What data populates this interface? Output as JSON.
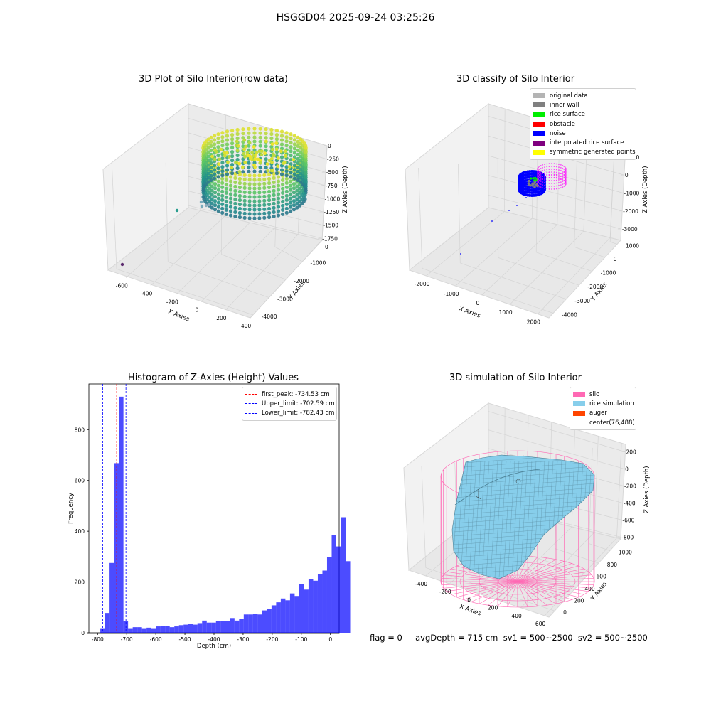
{
  "suptitle": "HSGGD04 2025-09-24 03:25:26",
  "panels": {
    "raw": {
      "title": "3D Plot of Silo Interior(row data)",
      "xlabel": "X Axies",
      "ylabel": "Y Axies",
      "zlabel": "Z Axies (Depth)",
      "xticks": [
        "-600",
        "-400",
        "-200",
        "0",
        "200",
        "400"
      ],
      "yticks": [
        "0",
        "-1000",
        "-2000",
        "-3000",
        "-4000"
      ],
      "zticks": [
        "0",
        "-250",
        "-500",
        "-750",
        "-1000",
        "-1250",
        "-1500",
        "-1750"
      ]
    },
    "classify": {
      "title": "3D classify of Silo Interior",
      "xlabel": "X Axies",
      "ylabel": "Y Axies",
      "zlabel": "Z Axies (Depth)",
      "xticks": [
        "-2000",
        "-1000",
        "0",
        "1000",
        "2000"
      ],
      "yticks": [
        "1000",
        "0",
        "-1000",
        "-2000",
        "-3000",
        "-4000"
      ],
      "zticks": [
        "1000",
        "0",
        "-1000",
        "-2000",
        "-3000"
      ],
      "legend": [
        {
          "label": "original data",
          "color": "#b4b4b4"
        },
        {
          "label": "inner wall",
          "color": "#808080"
        },
        {
          "label": "rice surface",
          "color": "#00ee00"
        },
        {
          "label": "obstacle",
          "color": "#ff0000"
        },
        {
          "label": "noise",
          "color": "#0000ff"
        },
        {
          "label": "interpolated rice surface",
          "color": "#800080"
        },
        {
          "label": "symmetric generated points",
          "color": "#ffff00"
        }
      ]
    },
    "histogram": {
      "title": "Histogram of Z-Axies (Height) Values",
      "legend": [
        {
          "label": "first_peak: -734.53 cm",
          "color": "#ff0000"
        },
        {
          "label": "Upper_limit: -702.59 cm",
          "color": "#0000ff"
        },
        {
          "label": "Lower_limit: -782.43 cm",
          "color": "#0000ff"
        }
      ]
    },
    "simulation": {
      "title": "3D simulation of Silo Interior",
      "xlabel": "X Axies",
      "ylabel": "Y Axies",
      "zlabel": "Z Axies (Depth)",
      "xticks": [
        "-400",
        "-200",
        "0",
        "200",
        "400",
        "600"
      ],
      "yticks": [
        "0",
        "200",
        "400",
        "600",
        "800",
        "1000"
      ],
      "zticks": [
        "200",
        "0",
        "-200",
        "-400",
        "-600",
        "-800"
      ],
      "legend": [
        {
          "label": "silo",
          "color": "#ff69b4"
        },
        {
          "label": "rice simulation",
          "color": "#87ceeb"
        },
        {
          "label": "auger",
          "color": "#ff4500"
        },
        {
          "label": "center(76,488)",
          "color": ""
        }
      ]
    }
  },
  "footer": "flag = 0     avgDepth = 715 cm  sv1 = 500~2500  sv2 = 500~2500",
  "chart_data": {
    "type": "bar",
    "title": "Histogram of Z-Axies (Height) Values",
    "xlabel": "Depth (cm)",
    "ylabel": "Frequency",
    "xlim": [
      -830,
      30
    ],
    "ylim": [
      0,
      980
    ],
    "xticks": [
      -800,
      -700,
      -600,
      -500,
      -400,
      -300,
      -200,
      -100,
      0
    ],
    "yticks": [
      0,
      200,
      400,
      600,
      800
    ],
    "bar_color": "#0000ff",
    "bin_width": 15.9,
    "bin_start": -790.7,
    "values": [
      18,
      78,
      275,
      668,
      930,
      45,
      18,
      22,
      22,
      18,
      20,
      18,
      25,
      28,
      28,
      22,
      25,
      30,
      32,
      35,
      32,
      38,
      48,
      40,
      40,
      45,
      45,
      45,
      58,
      48,
      55,
      72,
      72,
      75,
      72,
      88,
      95,
      108,
      120,
      135,
      128,
      155,
      145,
      192,
      170,
      212,
      205,
      230,
      245,
      298,
      385,
      340,
      455,
      282
    ],
    "vlines": [
      {
        "name": "first_peak",
        "x": -734.53,
        "color": "#ff0000"
      },
      {
        "name": "Upper_limit",
        "x": -702.59,
        "color": "#0000ff"
      },
      {
        "name": "Lower_limit",
        "x": -782.43,
        "color": "#0000ff"
      }
    ]
  }
}
